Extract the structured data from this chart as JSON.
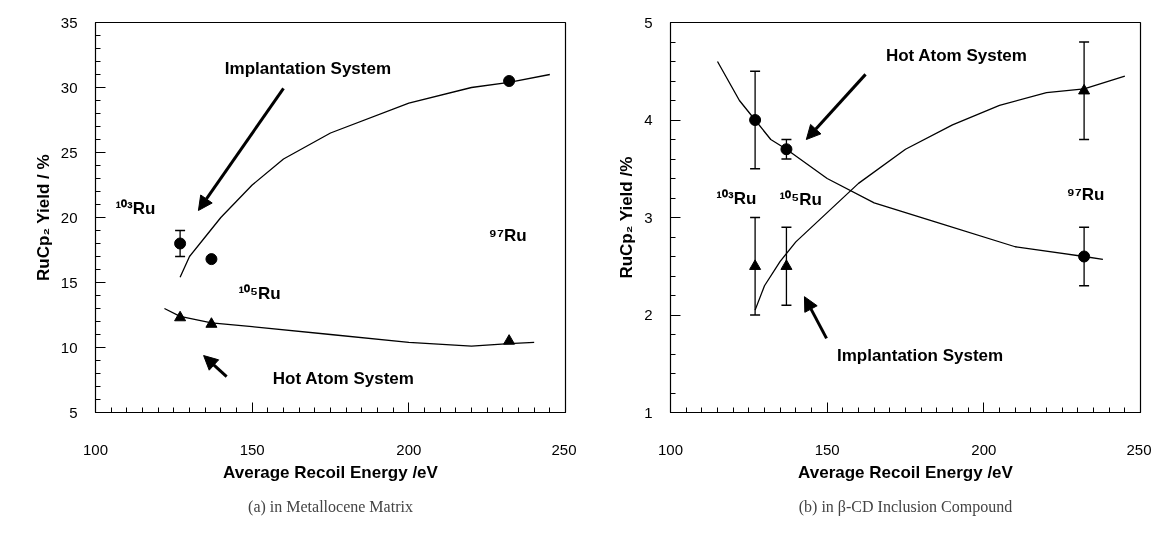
{
  "chart_data": [
    {
      "type": "scatter",
      "title": "(a) in Metallocene Matrix",
      "xlabel": "Average Recoil Energy /eV",
      "ylabel": "RuCp₂ Yield / %",
      "xlim": [
        100,
        250
      ],
      "xticks": [
        100,
        150,
        200,
        250
      ],
      "ylim": [
        5,
        35
      ],
      "yticks": [
        5,
        10,
        15,
        20,
        25,
        30,
        35
      ],
      "grid": false,
      "legend": false,
      "series": [
        {
          "marker": "circle",
          "color": "#000000",
          "x": [
            127,
            137,
            232
          ],
          "values": [
            18.0,
            16.8,
            30.5
          ],
          "errors": [
            1.0,
            null,
            null
          ]
        },
        {
          "marker": "triangle",
          "color": "#000000",
          "x": [
            127,
            137,
            232
          ],
          "values": [
            12.3,
            11.8,
            10.5
          ]
        },
        {
          "type": "line",
          "marker": "none",
          "color": "#000000",
          "x": [
            127,
            130,
            135,
            140,
            150,
            160,
            175,
            200,
            220,
            232,
            245
          ],
          "values": [
            15.4,
            17.0,
            18.5,
            20.0,
            22.5,
            24.5,
            26.5,
            28.8,
            30.0,
            30.4,
            31.0
          ]
        },
        {
          "type": "line",
          "marker": "none",
          "color": "#000000",
          "x": [
            122,
            127,
            137,
            150,
            175,
            200,
            220,
            232,
            240
          ],
          "values": [
            13.0,
            12.4,
            11.9,
            11.6,
            11.0,
            10.4,
            10.1,
            10.3,
            10.4
          ]
        }
      ],
      "annotations": [
        "Implantation  System",
        "Hot Atom System",
        "¹⁰³Ru",
        "¹⁰⁵Ru",
        "⁹⁷Ru"
      ]
    },
    {
      "type": "scatter",
      "title": "(b) in β-CD Inclusion Compound",
      "xlabel": "Average Recoil Energy /eV",
      "ylabel": "RuCp₂ Yield /%",
      "xlim": [
        100,
        250
      ],
      "xticks": [
        100,
        150,
        200,
        250
      ],
      "ylim": [
        1,
        5
      ],
      "yticks": [
        1,
        2,
        3,
        4,
        5
      ],
      "grid": false,
      "legend": false,
      "series": [
        {
          "marker": "circle",
          "color": "#000000",
          "x": [
            127,
            137,
            232
          ],
          "values": [
            4.0,
            3.7,
            2.6
          ],
          "errors": [
            0.5,
            0.1,
            0.3
          ]
        },
        {
          "marker": "triangle",
          "color": "#000000",
          "x": [
            127,
            137,
            232
          ],
          "values": [
            2.5,
            2.5,
            4.3
          ],
          "errors": [
            0.5,
            0.4,
            0.5
          ]
        },
        {
          "type": "line",
          "marker": "none",
          "color": "#000000",
          "x": [
            115,
            122,
            127,
            132,
            137,
            150,
            165,
            185,
            210,
            232,
            238
          ],
          "values": [
            4.6,
            4.2,
            4.0,
            3.8,
            3.7,
            3.4,
            3.15,
            2.95,
            2.7,
            2.6,
            2.57
          ]
        },
        {
          "type": "line",
          "marker": "none",
          "color": "#000000",
          "x": [
            127,
            130,
            135,
            140,
            150,
            160,
            175,
            190,
            205,
            220,
            232,
            245
          ],
          "values": [
            2.05,
            2.3,
            2.55,
            2.75,
            3.05,
            3.35,
            3.7,
            3.95,
            4.15,
            4.28,
            4.32,
            4.45
          ]
        }
      ],
      "annotations": [
        "Hot Atom System",
        "Implantation  System",
        "¹⁰³Ru",
        "¹⁰⁵Ru",
        "⁹⁷Ru"
      ]
    }
  ]
}
